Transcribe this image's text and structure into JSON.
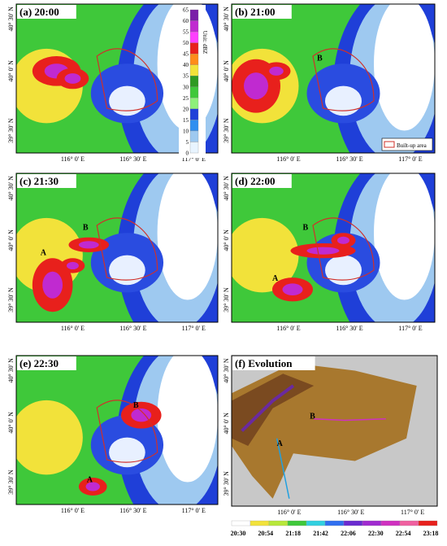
{
  "panels": [
    {
      "label": "(a) 20:00",
      "markers": []
    },
    {
      "label": "(b) 21:00",
      "markers": [
        "B"
      ]
    },
    {
      "label": "(c) 21:30",
      "markers": [
        "B",
        "A"
      ]
    },
    {
      "label": "(d) 22:00",
      "markers": [
        "B",
        "A"
      ]
    },
    {
      "label": "(e) 22:30",
      "markers": [
        "B",
        "A"
      ]
    },
    {
      "label": "(f) Evolution",
      "markers": [
        "B",
        "A"
      ]
    }
  ],
  "x_tick_labels": [
    "116° 0' E",
    "116° 30' E",
    "117° 0' E"
  ],
  "y_tick_labels": [
    "40° 30' N",
    "40° 0' N",
    "39° 30' N"
  ],
  "colorbar": {
    "unit": "Unit: dBZ",
    "ticks": [
      65,
      60,
      55,
      50,
      45,
      40,
      35,
      30,
      25,
      20,
      15,
      10,
      5,
      0
    ]
  },
  "legend": {
    "label": "Built-up area"
  },
  "evolution_timeline": {
    "times": [
      "20:30",
      "20:54",
      "21:18",
      "21:42",
      "22:06",
      "22:30",
      "22:54",
      "23:18"
    ]
  }
}
